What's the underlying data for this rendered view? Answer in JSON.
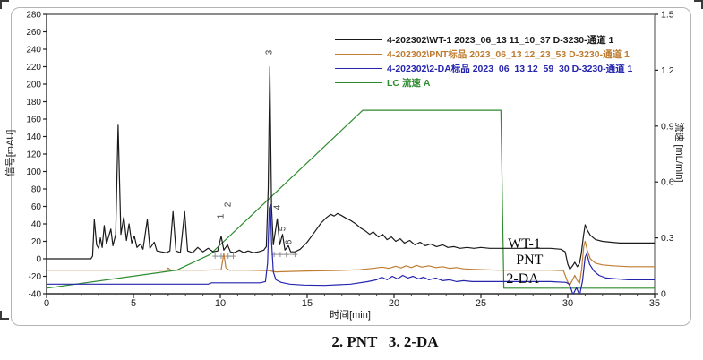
{
  "figure": {
    "caption": "2. PNT   3. 2-DA"
  },
  "chart_data": {
    "type": "line",
    "title": "",
    "xlabel": "时间[min]",
    "ylabel_left": "信号[mAU]",
    "ylabel_right": "流速 [mL/min]",
    "xlim": [
      0,
      35
    ],
    "ylim_left": [
      -40,
      280
    ],
    "ylim_right": [
      0,
      1.5
    ],
    "x_ticks": [
      0,
      5,
      10,
      15,
      20,
      25,
      30,
      35
    ],
    "x_minor_tick_step": 1,
    "y_ticks_left": [
      280,
      260,
      240,
      220,
      200,
      180,
      160,
      140,
      120,
      100,
      80,
      60,
      40,
      20,
      0,
      -20,
      -40
    ],
    "y_ticks_right": [
      "1.5",
      "1.2",
      "0.9",
      "0.6",
      "0.3",
      "0"
    ],
    "grid": false,
    "legend_position": "top-right-inside",
    "series": [
      {
        "key": "WT-1",
        "name": "4-202302\\WT-1 2023_06_13 11_10_37 D-3230-通道 1",
        "color": "#1a1a1a",
        "axis": "left",
        "points": [
          [
            0,
            0
          ],
          [
            2.55,
            0
          ],
          [
            2.65,
            3
          ],
          [
            2.75,
            45
          ],
          [
            2.88,
            16
          ],
          [
            3,
            12
          ],
          [
            3.1,
            24
          ],
          [
            3.2,
            13
          ],
          [
            3.32,
            38
          ],
          [
            3.45,
            17
          ],
          [
            3.58,
            26
          ],
          [
            3.7,
            34
          ],
          [
            3.82,
            15
          ],
          [
            3.98,
            28
          ],
          [
            4.12,
            153
          ],
          [
            4.28,
            28
          ],
          [
            4.45,
            48
          ],
          [
            4.6,
            21
          ],
          [
            4.75,
            40
          ],
          [
            4.9,
            18
          ],
          [
            5.05,
            26
          ],
          [
            5.2,
            13
          ],
          [
            5.4,
            17
          ],
          [
            5.55,
            11
          ],
          [
            5.8,
            45
          ],
          [
            5.95,
            12
          ],
          [
            6.2,
            19
          ],
          [
            6.35,
            9
          ],
          [
            6.6,
            8
          ],
          [
            6.9,
            7
          ],
          [
            7.1,
            9
          ],
          [
            7.28,
            54
          ],
          [
            7.45,
            9
          ],
          [
            7.7,
            7
          ],
          [
            7.95,
            54
          ],
          [
            8.12,
            9
          ],
          [
            8.4,
            7
          ],
          [
            8.7,
            13
          ],
          [
            9,
            8
          ],
          [
            9.3,
            12
          ],
          [
            9.6,
            8
          ],
          [
            9.85,
            9
          ],
          [
            10.05,
            26
          ],
          [
            10.2,
            10
          ],
          [
            10.42,
            16
          ],
          [
            10.58,
            8
          ],
          [
            10.8,
            7
          ],
          [
            11.1,
            10
          ],
          [
            11.35,
            7
          ],
          [
            11.6,
            9
          ],
          [
            11.9,
            7
          ],
          [
            12.2,
            8
          ],
          [
            12.5,
            10
          ],
          [
            12.65,
            14
          ],
          [
            12.76,
            80
          ],
          [
            12.85,
            220
          ],
          [
            12.95,
            60
          ],
          [
            13.05,
            16
          ],
          [
            13.28,
            46
          ],
          [
            13.42,
            16
          ],
          [
            13.58,
            28
          ],
          [
            13.72,
            10
          ],
          [
            13.92,
            15
          ],
          [
            14.05,
            8
          ],
          [
            14.3,
            8
          ],
          [
            14.6,
            11
          ],
          [
            15,
            19
          ],
          [
            15.4,
            30
          ],
          [
            15.8,
            41
          ],
          [
            16.1,
            47
          ],
          [
            16.35,
            51
          ],
          [
            16.55,
            49
          ],
          [
            16.75,
            52
          ],
          [
            16.95,
            50
          ],
          [
            17.2,
            47
          ],
          [
            17.5,
            44
          ],
          [
            17.8,
            40
          ],
          [
            18.1,
            35
          ],
          [
            18.35,
            32
          ],
          [
            18.6,
            28
          ],
          [
            18.8,
            31
          ],
          [
            19.1,
            25
          ],
          [
            19.35,
            28
          ],
          [
            19.6,
            22
          ],
          [
            19.85,
            25
          ],
          [
            20.1,
            20
          ],
          [
            20.35,
            23
          ],
          [
            20.6,
            18
          ],
          [
            20.9,
            21
          ],
          [
            21.2,
            16
          ],
          [
            21.5,
            19
          ],
          [
            21.8,
            15
          ],
          [
            22.1,
            17
          ],
          [
            22.45,
            14
          ],
          [
            22.8,
            16
          ],
          [
            23.1,
            13
          ],
          [
            23.45,
            14
          ],
          [
            23.8,
            12
          ],
          [
            24.2,
            13
          ],
          [
            24.6,
            12
          ],
          [
            25,
            13
          ],
          [
            25.5,
            12
          ],
          [
            26,
            12
          ],
          [
            26.5,
            12
          ],
          [
            27.2,
            12
          ],
          [
            28,
            12
          ],
          [
            29,
            12
          ],
          [
            29.6,
            11
          ],
          [
            29.85,
            8
          ],
          [
            30,
            -6
          ],
          [
            30.12,
            -12
          ],
          [
            30.28,
            -8
          ],
          [
            30.4,
            -4
          ],
          [
            30.55,
            -9
          ],
          [
            30.68,
            -5
          ],
          [
            30.78,
            6
          ],
          [
            30.9,
            26
          ],
          [
            31,
            39
          ],
          [
            31.12,
            33
          ],
          [
            31.3,
            27
          ],
          [
            31.6,
            22
          ],
          [
            32,
            20
          ],
          [
            32.5,
            19
          ],
          [
            33,
            18
          ],
          [
            34,
            18
          ],
          [
            35,
            18
          ]
        ]
      },
      {
        "key": "PNT",
        "name": "4-202302\\PNT标品 2023_06_13 12_23_53 D-3230-通道 1",
        "color": "#bf7d33",
        "axis": "left",
        "points": [
          [
            0,
            -13
          ],
          [
            3,
            -13
          ],
          [
            6.9,
            -13
          ],
          [
            7,
            -10.5
          ],
          [
            7.15,
            -13
          ],
          [
            9,
            -13
          ],
          [
            10.05,
            -12.5
          ],
          [
            10.2,
            6
          ],
          [
            10.32,
            -10
          ],
          [
            10.5,
            -13
          ],
          [
            11.5,
            -13
          ],
          [
            12.8,
            -13.5
          ],
          [
            13.2,
            -15
          ],
          [
            14,
            -14.5
          ],
          [
            15,
            -14
          ],
          [
            16.5,
            -13.5
          ],
          [
            18,
            -12.5
          ],
          [
            18.8,
            -11
          ],
          [
            19.3,
            -9.5
          ],
          [
            19.7,
            -11
          ],
          [
            20.1,
            -8.5
          ],
          [
            20.4,
            -10.5
          ],
          [
            20.7,
            -8
          ],
          [
            21,
            -10
          ],
          [
            21.3,
            -7.5
          ],
          [
            21.6,
            -9.5
          ],
          [
            22,
            -8
          ],
          [
            22.4,
            -10
          ],
          [
            22.8,
            -9
          ],
          [
            23.2,
            -11
          ],
          [
            23.6,
            -10
          ],
          [
            24,
            -11.5
          ],
          [
            24.5,
            -12
          ],
          [
            25.2,
            -12.5
          ],
          [
            26,
            -13
          ],
          [
            27,
            -13
          ],
          [
            28,
            -13
          ],
          [
            29,
            -13
          ],
          [
            29.75,
            -13.5
          ],
          [
            29.95,
            -24
          ],
          [
            30.1,
            -31
          ],
          [
            30.25,
            -25
          ],
          [
            30.4,
            -19
          ],
          [
            30.55,
            -25
          ],
          [
            30.68,
            -28
          ],
          [
            30.8,
            -12
          ],
          [
            30.92,
            14
          ],
          [
            31,
            20
          ],
          [
            31.12,
            10
          ],
          [
            31.3,
            0
          ],
          [
            31.6,
            -5
          ],
          [
            32,
            -7
          ],
          [
            32.6,
            -8
          ],
          [
            33.5,
            -9
          ],
          [
            34.5,
            -9
          ],
          [
            35,
            -9
          ]
        ]
      },
      {
        "key": "2-DA",
        "name": "4-202302\\2-DA标品 2023_06_13 12_59_30 D-3230-通道 1",
        "color": "#2525ad",
        "axis": "left",
        "points": [
          [
            0,
            -29
          ],
          [
            5,
            -29
          ],
          [
            9.3,
            -29
          ],
          [
            9.5,
            -27.5
          ],
          [
            12.3,
            -27.5
          ],
          [
            12.6,
            -26
          ],
          [
            12.72,
            -5
          ],
          [
            12.82,
            58
          ],
          [
            12.88,
            62
          ],
          [
            12.95,
            20
          ],
          [
            13.05,
            -15
          ],
          [
            13.2,
            -24
          ],
          [
            13.5,
            -27
          ],
          [
            14,
            -29
          ],
          [
            14.8,
            -30
          ],
          [
            16,
            -30.5
          ],
          [
            17.5,
            -29
          ],
          [
            18.5,
            -26
          ],
          [
            19,
            -24
          ],
          [
            19.3,
            -21
          ],
          [
            19.6,
            -24
          ],
          [
            19.9,
            -20
          ],
          [
            20.2,
            -23
          ],
          [
            20.5,
            -19
          ],
          [
            20.8,
            -22
          ],
          [
            21.1,
            -20
          ],
          [
            21.4,
            -23
          ],
          [
            21.7,
            -21
          ],
          [
            22,
            -24
          ],
          [
            22.4,
            -22
          ],
          [
            22.8,
            -25
          ],
          [
            23.2,
            -24
          ],
          [
            23.6,
            -26
          ],
          [
            24,
            -25
          ],
          [
            24.5,
            -26
          ],
          [
            25,
            -26
          ],
          [
            26,
            -26
          ],
          [
            27,
            -26
          ],
          [
            28,
            -26
          ],
          [
            29,
            -26
          ],
          [
            29.9,
            -27
          ],
          [
            30.1,
            -29
          ],
          [
            30.3,
            -41
          ],
          [
            30.5,
            -33
          ],
          [
            30.68,
            -42
          ],
          [
            30.85,
            -25
          ],
          [
            31,
            2
          ],
          [
            31.1,
            6
          ],
          [
            31.25,
            -6
          ],
          [
            31.5,
            -14
          ],
          [
            31.8,
            -19
          ],
          [
            32.2,
            -22
          ],
          [
            32.8,
            -23
          ],
          [
            33.5,
            -24
          ],
          [
            34.5,
            -24
          ],
          [
            35,
            -24
          ]
        ]
      },
      {
        "key": "LC-flow",
        "name": "LC 流速 A",
        "color": "#2f8b2f",
        "axis": "right",
        "points": [
          [
            0,
            0.03
          ],
          [
            7.5,
            0.127
          ],
          [
            9.4,
            0.21
          ],
          [
            18.2,
            0.985
          ],
          [
            26.15,
            0.985
          ],
          [
            26.32,
            0.03
          ],
          [
            35,
            0.03
          ]
        ]
      }
    ],
    "peak_labels": [
      {
        "text": "1",
        "x": 10.05,
        "y": 42
      },
      {
        "text": "2",
        "x": 10.45,
        "y": 55
      },
      {
        "text": "3",
        "x": 12.85,
        "y": 230
      },
      {
        "text": "4",
        "x": 13.3,
        "y": 52
      },
      {
        "text": "5",
        "x": 13.6,
        "y": 28
      },
      {
        "text": "6",
        "x": 13.95,
        "y": 12
      }
    ],
    "trace_annotations": [
      {
        "key": "wt-1",
        "text": "WT-1",
        "x": 27.5,
        "y": 16
      },
      {
        "key": "pnt",
        "text": "PNT",
        "x": 27.8,
        "y": -2
      },
      {
        "key": "2-da",
        "text": "2-DA",
        "x": 27.4,
        "y": -24
      }
    ],
    "integration_marks": [
      {
        "x1": 9.7,
        "x2": 10.75,
        "y": 3,
        "crosses": [
          9.7,
          10.05,
          10.45,
          10.75
        ]
      },
      {
        "x1": 13.1,
        "x2": 14.3,
        "y": 5,
        "crosses": [
          13.1,
          13.45,
          13.8,
          14.3
        ]
      }
    ]
  }
}
